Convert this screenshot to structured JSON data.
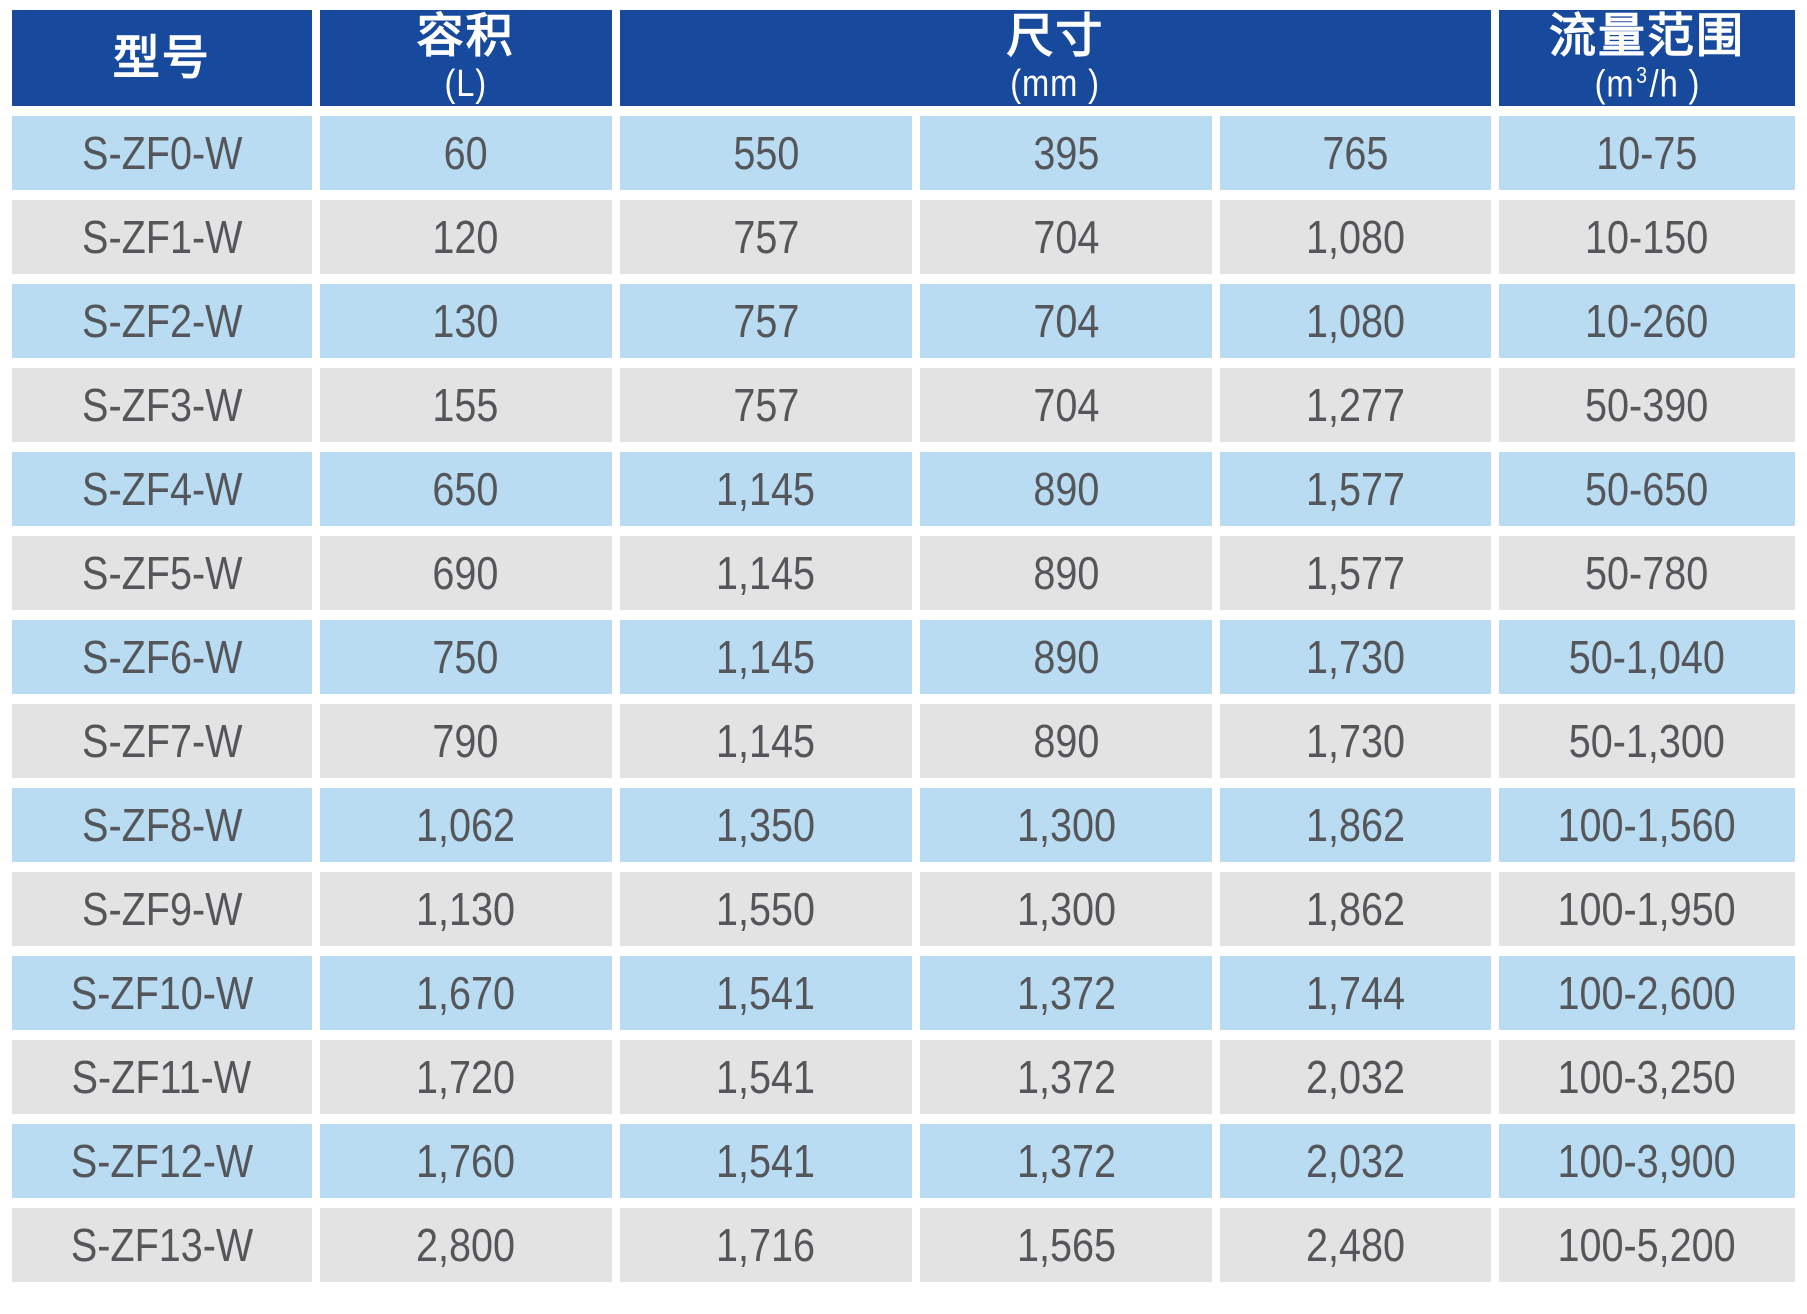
{
  "table": {
    "headers": {
      "model": {
        "label": "型号"
      },
      "volume": {
        "label": "容积",
        "unit": "(L)"
      },
      "dimensions": {
        "label": "尺寸",
        "unit": "(mm )",
        "colspan": 3
      },
      "flow": {
        "label": "流量范围",
        "unit_prefix": "(m",
        "unit_sup": "3",
        "unit_suffix": "/h )"
      }
    },
    "rows": [
      {
        "model": "S-ZF0-W",
        "volume": "60",
        "dim_l": "550",
        "dim_w": "395",
        "dim_h": "765",
        "flow": "10-75"
      },
      {
        "model": "S-ZF1-W",
        "volume": "120",
        "dim_l": "757",
        "dim_w": "704",
        "dim_h": "1,080",
        "flow": "10-150"
      },
      {
        "model": "S-ZF2-W",
        "volume": "130",
        "dim_l": "757",
        "dim_w": "704",
        "dim_h": "1,080",
        "flow": "10-260"
      },
      {
        "model": "S-ZF3-W",
        "volume": "155",
        "dim_l": "757",
        "dim_w": "704",
        "dim_h": "1,277",
        "flow": "50-390"
      },
      {
        "model": "S-ZF4-W",
        "volume": "650",
        "dim_l": "1,145",
        "dim_w": "890",
        "dim_h": "1,577",
        "flow": "50-650"
      },
      {
        "model": "S-ZF5-W",
        "volume": "690",
        "dim_l": "1,145",
        "dim_w": "890",
        "dim_h": "1,577",
        "flow": "50-780"
      },
      {
        "model": "S-ZF6-W",
        "volume": "750",
        "dim_l": "1,145",
        "dim_w": "890",
        "dim_h": "1,730",
        "flow": "50-1,040"
      },
      {
        "model": "S-ZF7-W",
        "volume": "790",
        "dim_l": "1,145",
        "dim_w": "890",
        "dim_h": "1,730",
        "flow": "50-1,300"
      },
      {
        "model": "S-ZF8-W",
        "volume": "1,062",
        "dim_l": "1,350",
        "dim_w": "1,300",
        "dim_h": "1,862",
        "flow": "100-1,560"
      },
      {
        "model": "S-ZF9-W",
        "volume": "1,130",
        "dim_l": "1,550",
        "dim_w": "1,300",
        "dim_h": "1,862",
        "flow": "100-1,950"
      },
      {
        "model": "S-ZF10-W",
        "volume": "1,670",
        "dim_l": "1,541",
        "dim_w": "1,372",
        "dim_h": "1,744",
        "flow": "100-2,600"
      },
      {
        "model": "S-ZF11-W",
        "volume": "1,720",
        "dim_l": "1,541",
        "dim_w": "1,372",
        "dim_h": "2,032",
        "flow": "100-3,250"
      },
      {
        "model": "S-ZF12-W",
        "volume": "1,760",
        "dim_l": "1,541",
        "dim_w": "1,372",
        "dim_h": "2,032",
        "flow": "100-3,900"
      },
      {
        "model": "S-ZF13-W",
        "volume": "2,800",
        "dim_l": "1,716",
        "dim_w": "1,565",
        "dim_h": "2,480",
        "flow": "100-5,200"
      }
    ]
  },
  "colors": {
    "header_bg": "#17499c",
    "header_text": "#ffffff",
    "row_blue": "#b9dcf2",
    "row_gray": "#e3e3e4",
    "cell_text": "#55565a",
    "gap": "#ffffff"
  }
}
